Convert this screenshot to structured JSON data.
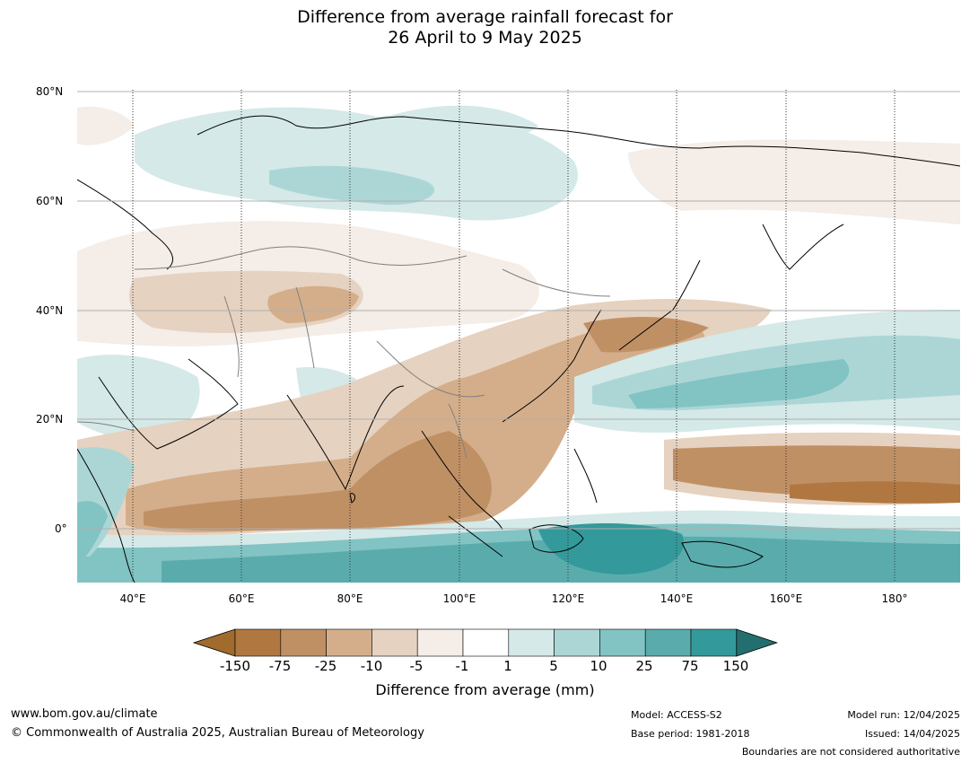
{
  "title": {
    "line1": "Difference from average rainfall forecast for",
    "line2": "26 April to 9 May 2025"
  },
  "map": {
    "lat_labels": [
      "80°N",
      "60°N",
      "40°N",
      "20°N",
      "0°"
    ],
    "lon_labels": [
      "40°E",
      "60°E",
      "80°E",
      "100°E",
      "120°E",
      "140°E",
      "160°E",
      "180°"
    ],
    "colors": {
      "land_border": "#000000",
      "country_border": "#808080",
      "grid": "#999999"
    }
  },
  "colorbar": {
    "ticks": [
      "-150",
      "-75",
      "-25",
      "-10",
      "-5",
      "-1",
      "1",
      "5",
      "10",
      "25",
      "75",
      "150"
    ],
    "colors": [
      "#a06b2c",
      "#b07740",
      "#c09065",
      "#d4ae8a",
      "#e6d2c0",
      "#f4ede8",
      "#ffffff",
      "#d4e9e8",
      "#acd6d6",
      "#82c3c3",
      "#5aacac",
      "#34999a",
      "#236f70"
    ],
    "label": "Difference from average (mm)"
  },
  "footer": {
    "url": "www.bom.gov.au/climate",
    "copyright": "© Commonwealth of Australia 2025, Australian Bureau of Meteorology",
    "model": "Model: ACCESS-S2",
    "base_period": "Base period: 1981-2018",
    "model_run": "Model run: 12/04/2025",
    "issued": "Issued: 14/04/2025",
    "disclaimer": "Boundaries are not considered authoritative"
  }
}
